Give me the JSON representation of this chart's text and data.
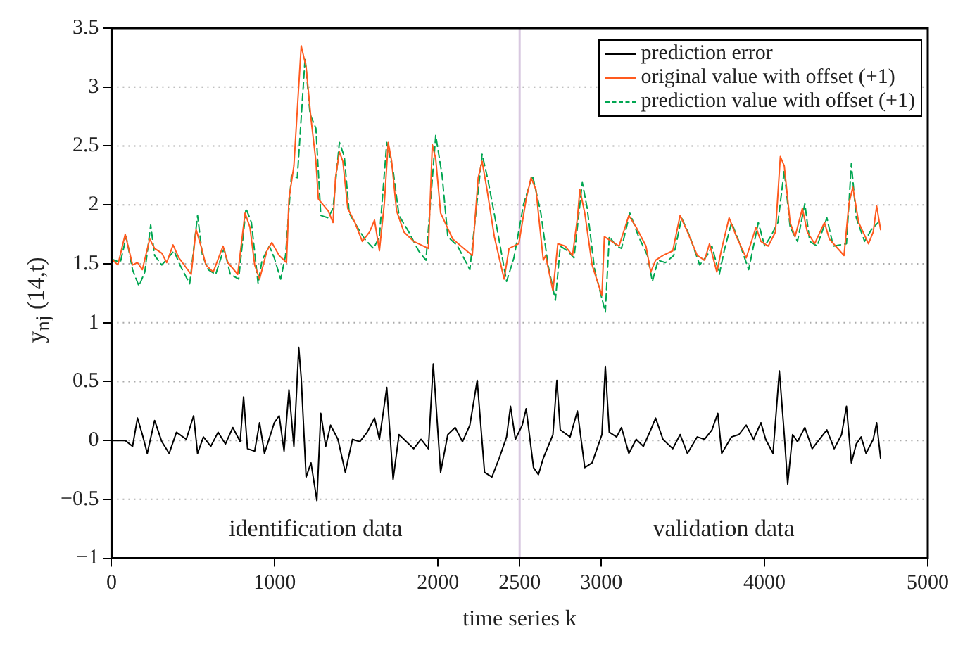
{
  "chart_data": {
    "type": "line",
    "xlabel": "time series k",
    "ylabel": "y$_{nj}$ (14,t)",
    "xlim": [
      0,
      5000
    ],
    "xticks": [
      0,
      1000,
      2000,
      2500,
      3000,
      4000,
      5000
    ],
    "ylim": [
      -1,
      3.5
    ],
    "yticks": [
      -1,
      -0.5,
      0,
      0.5,
      1,
      1.5,
      2,
      2.5,
      3,
      3.5
    ],
    "grid": "y",
    "legend": "top right",
    "marker": "none",
    "annotations": [
      "identification data",
      "validation data"
    ],
    "ref_lines": [
      {
        "axis": "x",
        "value": 2500,
        "color": "#d8c8e0"
      }
    ],
    "series": [
      {
        "name": "prediction error",
        "color": "#000000",
        "line_style": "solid",
        "x": [
          0,
          84,
          129,
          159,
          189,
          219,
          264,
          308,
          353,
          398,
          458,
          503,
          527,
          563,
          608,
          653,
          698,
          743,
          788,
          809,
          833,
          877,
          907,
          937,
          997,
          1027,
          1057,
          1087,
          1117,
          1147,
          1162,
          1192,
          1222,
          1258,
          1282,
          1312,
          1342,
          1387,
          1432,
          1476,
          1521,
          1566,
          1611,
          1641,
          1686,
          1725,
          1761,
          1806,
          1851,
          1896,
          1941,
          1971,
          2016,
          2060,
          2105,
          2150,
          2195,
          2240,
          2285,
          2330,
          2375,
          2420,
          2444,
          2474,
          2516,
          2540,
          2585,
          2615,
          2645,
          2704,
          2728,
          2749,
          2809,
          2854,
          2899,
          2944,
          3004,
          3025,
          3049,
          3094,
          3124,
          3169,
          3214,
          3258,
          3303,
          3333,
          3378,
          3438,
          3483,
          3528,
          3588,
          3633,
          3678,
          3714,
          3738,
          3798,
          3843,
          3888,
          3933,
          3978,
          4007,
          4052,
          4091,
          4121,
          4142,
          4172,
          4202,
          4247,
          4292,
          4337,
          4382,
          4427,
          4472,
          4502,
          4532,
          4562,
          4592,
          4622,
          4666,
          4687,
          4711
        ],
        "values": [
          0,
          0,
          -0.05,
          0.19,
          0.05,
          -0.11,
          0.17,
          -0.01,
          -0.11,
          0.07,
          0.01,
          0.21,
          -0.11,
          0.03,
          -0.05,
          0.07,
          -0.03,
          0.11,
          -0.01,
          0.37,
          -0.07,
          -0.09,
          0.15,
          -0.11,
          0.15,
          0.21,
          -0.09,
          0.43,
          -0.05,
          0.79,
          0.53,
          -0.31,
          -0.19,
          -0.51,
          0.23,
          -0.05,
          0.13,
          0.01,
          -0.27,
          0.01,
          -0.01,
          0.07,
          0.19,
          0.01,
          0.45,
          -0.33,
          0.05,
          -0.01,
          -0.07,
          0.01,
          -0.07,
          0.65,
          -0.27,
          0.05,
          0.11,
          -0.01,
          0.13,
          0.51,
          -0.27,
          -0.31,
          -0.15,
          0.03,
          0.29,
          0.01,
          0.13,
          0.27,
          -0.23,
          -0.29,
          -0.15,
          0.05,
          0.51,
          0.09,
          0.03,
          0.25,
          -0.23,
          -0.19,
          0.05,
          0.63,
          0.07,
          0.03,
          0.11,
          -0.11,
          0.01,
          -0.05,
          0.09,
          0.19,
          0.01,
          -0.07,
          0.05,
          -0.11,
          0.03,
          0.01,
          0.09,
          0.23,
          -0.11,
          0.03,
          0.05,
          0.13,
          0.01,
          0.15,
          0.01,
          -0.11,
          0.59,
          0.05,
          -0.37,
          0.05,
          -0.01,
          0.11,
          -0.07,
          0.01,
          0.09,
          -0.07,
          0.05,
          0.29,
          -0.19,
          -0.03,
          0.03,
          -0.11,
          0.01,
          0.15,
          -0.15
        ]
      },
      {
        "name": "original value with offset (+1)",
        "color": "#ff5a1e",
        "line_style": "solid",
        "x": [
          0,
          39,
          84,
          129,
          159,
          189,
          234,
          264,
          308,
          338,
          377,
          413,
          488,
          518,
          548,
          578,
          623,
          683,
          713,
          773,
          818,
          848,
          877,
          907,
          952,
          982,
          1027,
          1072,
          1087,
          1117,
          1162,
          1192,
          1222,
          1252,
          1267,
          1327,
          1357,
          1372,
          1396,
          1417,
          1447,
          1491,
          1536,
          1581,
          1611,
          1641,
          1671,
          1695,
          1716,
          1746,
          1791,
          1851,
          1941,
          1965,
          1986,
          2016,
          2090,
          2210,
          2246,
          2270,
          2300,
          2345,
          2405,
          2435,
          2495,
          2540,
          2570,
          2600,
          2645,
          2659,
          2704,
          2734,
          2779,
          2824,
          2854,
          2869,
          2899,
          2944,
          3004,
          3019,
          3064,
          3109,
          3169,
          3214,
          3274,
          3303,
          3333,
          3378,
          3438,
          3483,
          3528,
          3588,
          3633,
          3663,
          3708,
          3738,
          3783,
          3828,
          3888,
          3948,
          3978,
          4023,
          4067,
          4097,
          4121,
          4157,
          4187,
          4232,
          4262,
          4307,
          4367,
          4397,
          4487,
          4517,
          4541,
          4577,
          4637,
          4666,
          4687,
          4711
        ],
        "values": [
          1.54,
          1.49,
          1.75,
          1.49,
          1.51,
          1.45,
          1.71,
          1.63,
          1.59,
          1.51,
          1.66,
          1.55,
          1.41,
          1.79,
          1.65,
          1.49,
          1.43,
          1.65,
          1.51,
          1.41,
          1.93,
          1.81,
          1.49,
          1.37,
          1.61,
          1.68,
          1.57,
          1.51,
          2.05,
          2.33,
          3.35,
          3.17,
          2.73,
          2.37,
          2.05,
          1.95,
          1.85,
          2.23,
          2.45,
          2.37,
          1.97,
          1.85,
          1.69,
          1.77,
          1.87,
          1.61,
          2.01,
          2.53,
          2.37,
          1.95,
          1.77,
          1.69,
          1.63,
          2.51,
          2.39,
          1.93,
          1.71,
          1.57,
          2.23,
          2.37,
          2.13,
          1.73,
          1.37,
          1.63,
          1.67,
          2.05,
          2.23,
          2.13,
          1.53,
          1.57,
          1.27,
          1.67,
          1.65,
          1.57,
          1.89,
          2.13,
          1.93,
          1.49,
          1.23,
          1.73,
          1.69,
          1.65,
          1.91,
          1.81,
          1.65,
          1.43,
          1.53,
          1.57,
          1.61,
          1.91,
          1.77,
          1.57,
          1.53,
          1.67,
          1.43,
          1.63,
          1.89,
          1.73,
          1.55,
          1.81,
          1.69,
          1.65,
          1.77,
          2.41,
          2.33,
          1.85,
          1.73,
          1.97,
          1.77,
          1.67,
          1.85,
          1.71,
          1.57,
          2.01,
          2.15,
          1.85,
          1.67,
          1.77,
          1.99,
          1.79
        ]
      },
      {
        "name": "prediction value with offset (+1)",
        "color": "#00a651",
        "line_style": "dashed",
        "x": [
          0,
          54,
          90,
          129,
          168,
          204,
          240,
          264,
          308,
          347,
          383,
          419,
          479,
          527,
          557,
          593,
          638,
          689,
          728,
          779,
          824,
          857,
          898,
          922,
          967,
          997,
          1036,
          1066,
          1102,
          1138,
          1186,
          1216,
          1252,
          1282,
          1327,
          1357,
          1396,
          1426,
          1456,
          1506,
          1551,
          1605,
          1641,
          1686,
          1725,
          1761,
          1821,
          1881,
          1926,
          1986,
          2025,
          2060,
          2120,
          2195,
          2270,
          2306,
          2360,
          2420,
          2465,
          2525,
          2579,
          2630,
          2674,
          2719,
          2749,
          2794,
          2833,
          2884,
          2914,
          2959,
          3025,
          3049,
          3094,
          3124,
          3175,
          3229,
          3283,
          3313,
          3348,
          3393,
          3444,
          3492,
          3543,
          3603,
          3648,
          3678,
          3723,
          3753,
          3798,
          3843,
          3903,
          3962,
          4001,
          4037,
          4082,
          4121,
          4157,
          4202,
          4247,
          4277,
          4322,
          4382,
          4421,
          4502,
          4532,
          4562,
          4613,
          4655,
          4696
        ],
        "values": [
          1.54,
          1.51,
          1.73,
          1.45,
          1.31,
          1.43,
          1.83,
          1.57,
          1.49,
          1.55,
          1.61,
          1.49,
          1.33,
          1.91,
          1.57,
          1.45,
          1.41,
          1.63,
          1.41,
          1.37,
          1.97,
          1.85,
          1.33,
          1.53,
          1.65,
          1.55,
          1.37,
          1.57,
          2.25,
          2.23,
          3.25,
          2.77,
          2.65,
          1.91,
          1.89,
          1.97,
          2.53,
          2.41,
          1.93,
          1.81,
          1.71,
          1.63,
          1.73,
          2.53,
          2.29,
          1.91,
          1.77,
          1.61,
          1.53,
          2.59,
          2.25,
          1.73,
          1.65,
          1.45,
          2.43,
          2.21,
          1.81,
          1.35,
          1.55,
          2.01,
          2.25,
          1.93,
          1.49,
          1.19,
          1.65,
          1.61,
          1.55,
          2.19,
          1.97,
          1.45,
          1.09,
          1.73,
          1.65,
          1.63,
          1.93,
          1.73,
          1.57,
          1.35,
          1.53,
          1.51,
          1.57,
          1.89,
          1.73,
          1.49,
          1.57,
          1.65,
          1.41,
          1.61,
          1.85,
          1.69,
          1.45,
          1.85,
          1.65,
          1.73,
          1.85,
          2.29,
          1.81,
          1.69,
          2.01,
          1.69,
          1.65,
          1.89,
          1.65,
          1.67,
          2.35,
          1.89,
          1.69,
          1.79,
          1.85
        ]
      }
    ]
  }
}
